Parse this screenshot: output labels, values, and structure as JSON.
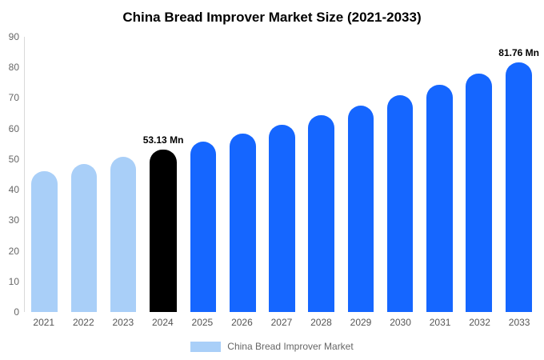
{
  "title": "China Bread Improver Market Size (2021-2033)",
  "legend": {
    "label": "China Bread Improver Market",
    "swatch_color": "#A9CFF8"
  },
  "colors": {
    "light_blue": "#A9CFF8",
    "blue": "#1566FF",
    "black": "#000000",
    "axis_text": "#666666"
  },
  "chart_data": {
    "type": "bar",
    "title": "China Bread Improver Market Size (2021-2033)",
    "unit": "Mn",
    "categories": [
      "2021",
      "2022",
      "2023",
      "2024",
      "2025",
      "2026",
      "2027",
      "2028",
      "2029",
      "2030",
      "2031",
      "2032",
      "2033"
    ],
    "values": [
      46.02,
      48.28,
      50.65,
      53.13,
      55.73,
      58.46,
      61.33,
      64.34,
      67.5,
      70.81,
      74.28,
      77.93,
      81.76
    ],
    "bar_colors": [
      "#A9CFF8",
      "#A9CFF8",
      "#A9CFF8",
      "#000000",
      "#1566FF",
      "#1566FF",
      "#1566FF",
      "#1566FF",
      "#1566FF",
      "#1566FF",
      "#1566FF",
      "#1566FF",
      "#1566FF"
    ],
    "ylim": [
      0,
      90
    ],
    "yticks": [
      0,
      10,
      20,
      30,
      40,
      50,
      60,
      70,
      80,
      90
    ],
    "xlabel": "",
    "ylabel": "",
    "grid": false,
    "legend_position": "bottom",
    "legend_entries": [
      "China Bread Improver Market"
    ],
    "annotations": [
      {
        "category": "2024",
        "text": "53.13 Mn"
      },
      {
        "category": "2033",
        "text": "81.76 Mn"
      }
    ]
  }
}
